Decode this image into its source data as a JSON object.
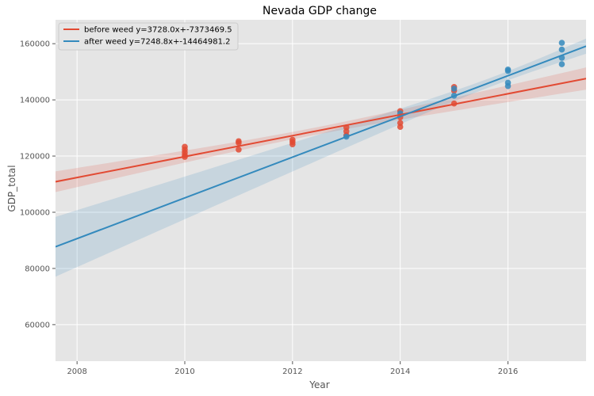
{
  "chart_data": {
    "type": "scatter",
    "title": "Nevada GDP change",
    "xlabel": "Year",
    "ylabel": "GDP_total",
    "xlim": [
      2007.6,
      2017.45
    ],
    "ylim": [
      47000,
      168500
    ],
    "xticks": [
      2008,
      2010,
      2012,
      2014,
      2016
    ],
    "yticks": [
      60000,
      80000,
      100000,
      120000,
      140000,
      160000
    ],
    "grid": true,
    "legend_position": "top-left",
    "series": [
      {
        "name": "before weed y=3728.0x+-7373469.5",
        "color": "#e24a33",
        "slope": 3728.0,
        "intercept": -7373469.5,
        "points": [
          [
            2010,
            123300
          ],
          [
            2010,
            122300
          ],
          [
            2010,
            121300
          ],
          [
            2010,
            120300
          ],
          [
            2010,
            119700
          ],
          [
            2011,
            125300
          ],
          [
            2011,
            124700
          ],
          [
            2011,
            122300
          ],
          [
            2012,
            125800
          ],
          [
            2012,
            125000
          ],
          [
            2012,
            124200
          ],
          [
            2013,
            130200
          ],
          [
            2013,
            128800
          ],
          [
            2013,
            127400
          ],
          [
            2014,
            136000
          ],
          [
            2014,
            133800
          ],
          [
            2014,
            131800
          ],
          [
            2014,
            130400
          ],
          [
            2015,
            144600
          ],
          [
            2015,
            143300
          ],
          [
            2015,
            138700
          ]
        ]
      },
      {
        "name": "after weed y=7248.8x+-14464981.2",
        "color": "#348abd",
        "slope": 7248.8,
        "intercept": -14464981.2,
        "points": [
          [
            2013,
            126900
          ],
          [
            2014,
            135200
          ],
          [
            2015,
            144000
          ],
          [
            2015,
            141500
          ],
          [
            2016,
            150800
          ],
          [
            2016,
            150300
          ],
          [
            2016,
            146100
          ],
          [
            2016,
            144900
          ],
          [
            2017,
            160300
          ],
          [
            2017,
            157900
          ],
          [
            2017,
            155000
          ],
          [
            2017,
            152700
          ]
        ]
      }
    ]
  }
}
